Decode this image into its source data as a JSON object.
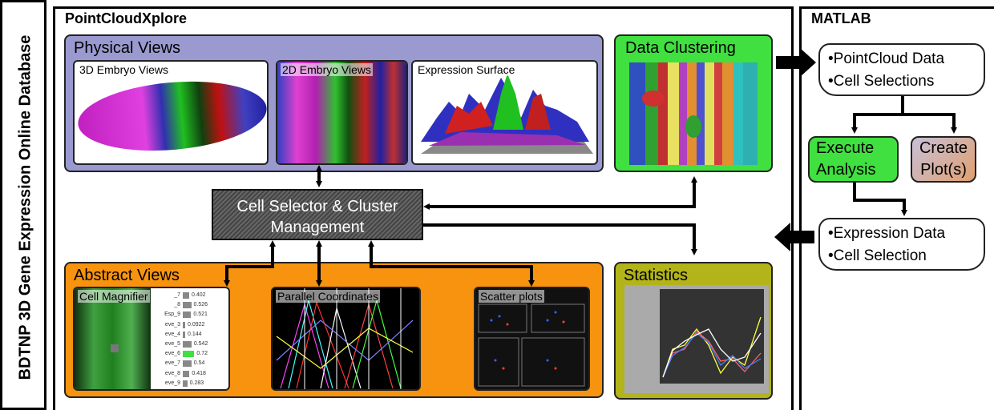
{
  "sidebar": {
    "label": "BDTNP 3D Gene Expression Online Database"
  },
  "pcx": {
    "title": "PointCloudXplore",
    "physical": {
      "title": "Physical Views",
      "views": [
        "3D Embryo Views",
        "2D Embryo Views",
        "Expression Surface"
      ]
    },
    "clustering": {
      "title": "Data Clustering"
    },
    "selector": {
      "line1": "Cell Selector & Cluster",
      "line2": "Management"
    },
    "abstract": {
      "title": "Abstract Views",
      "views": [
        "Cell Magnifier",
        "Parallel Coordinates",
        "Scatter plots"
      ],
      "magnifier_rows": [
        {
          "label": "_7",
          "value": "0.402"
        },
        {
          "label": "_8",
          "value": "0.526"
        },
        {
          "label": "Esp_9",
          "value": "0.521"
        },
        {
          "label": "eve_3",
          "value": "0.0922"
        },
        {
          "label": "eve_4",
          "value": "0.144"
        },
        {
          "label": "eve_5",
          "value": "0.542"
        },
        {
          "label": "eve_6",
          "value": "0.72"
        },
        {
          "label": "eve_7",
          "value": "0.54"
        },
        {
          "label": "eve_8",
          "value": "0.418"
        },
        {
          "label": "eve_9",
          "value": "0.283"
        }
      ]
    },
    "statistics": {
      "title": "Statistics"
    }
  },
  "matlab": {
    "title": "MATLAB",
    "input_box": {
      "line1": "•PointCloud Data",
      "line2": "•Cell Selections"
    },
    "execute": {
      "line1": "Execute",
      "line2": "Analysis"
    },
    "plot": {
      "line1": "Create",
      "line2": "Plot(s)"
    },
    "output_box": {
      "line1": "•Expression Data",
      "line2": "•Cell Selection"
    }
  },
  "colors": {
    "physical_bg": "#9a9ad0",
    "clustering_bg": "#40e040",
    "abstract_bg": "#f7930e",
    "statistics_bg": "#b3b31a",
    "execute_bg": "#40e040",
    "plot_bg": "#d8b090"
  }
}
